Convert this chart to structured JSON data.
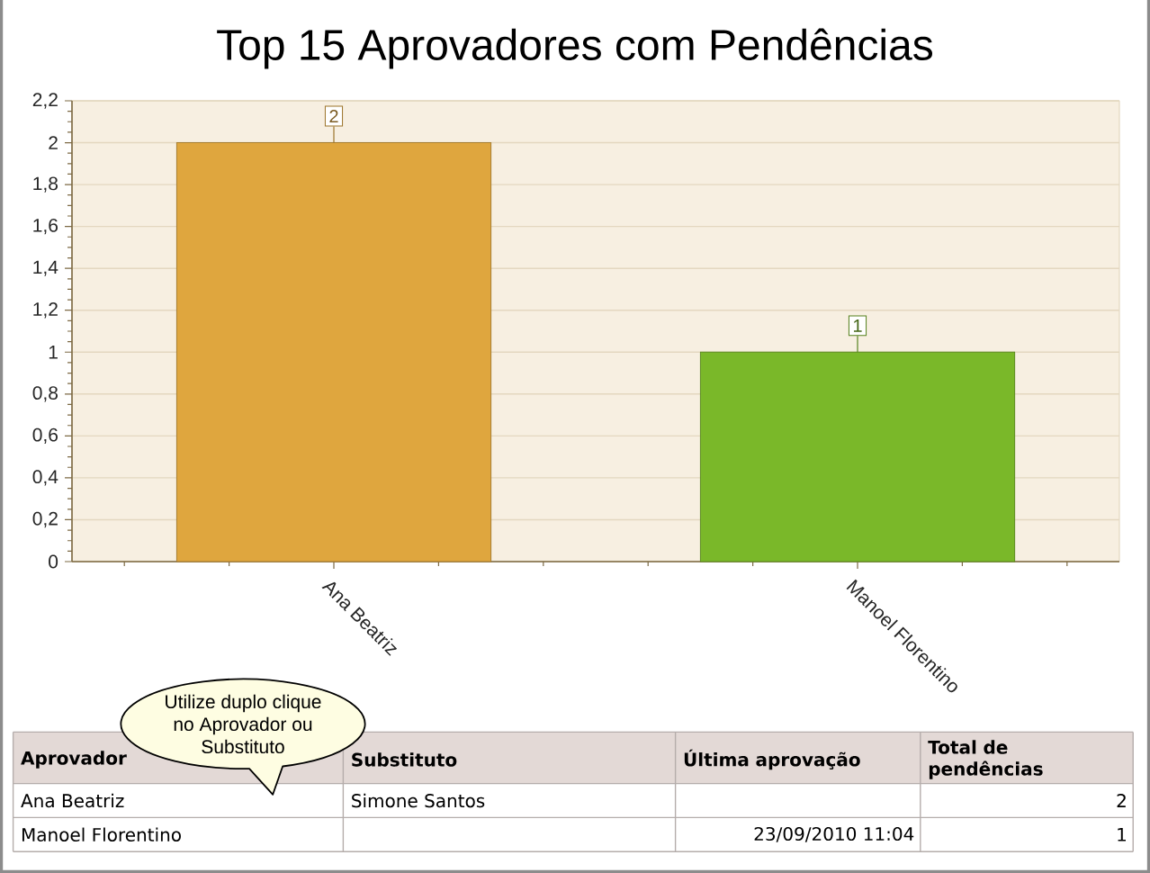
{
  "chart_data": {
    "type": "bar",
    "title": "Top 15 Aprovadores com Pendências",
    "categories": [
      "Ana Beatriz",
      "Manoel Florentino"
    ],
    "values": [
      2,
      1
    ],
    "colors": [
      "#dfa63e",
      "#7ab829"
    ],
    "ylim": [
      0,
      2.2
    ],
    "yticks": [
      0,
      {
        "value": 0.2,
        "label": "0,2"
      },
      {
        "value": 0.4,
        "label": "0,4"
      },
      {
        "value": 0.6,
        "label": "0,6"
      },
      {
        "value": 0.8,
        "label": "0,8"
      },
      1,
      {
        "value": 1.2,
        "label": "1,2"
      },
      {
        "value": 1.4,
        "label": "1,4"
      },
      {
        "value": 1.6,
        "label": "1,6"
      },
      {
        "value": 1.8,
        "label": "1,8"
      },
      2,
      {
        "value": 2.2,
        "label": "2,2"
      }
    ],
    "grid": "y",
    "data_labels": true,
    "annotations": [
      "Utilize duplo clique no Aprovador ou Substituto",
      "Aprovador",
      "Substituto",
      "Última aprovação",
      "Total de pendências",
      "Simone Santos",
      "23/09/2010 11:04",
      "2",
      "1"
    ]
  }
}
